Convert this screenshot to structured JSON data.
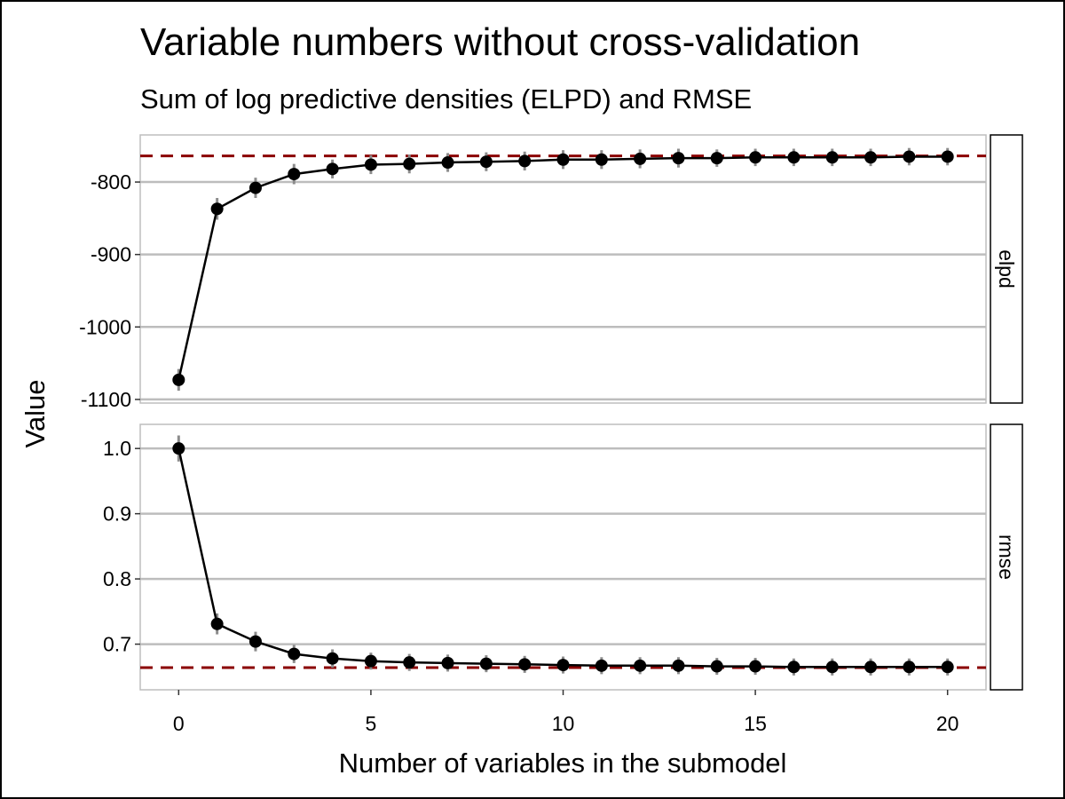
{
  "chart_data": {
    "type": "line",
    "title": "Variable numbers without cross-validation",
    "subtitle": "Sum of log predictive densities (ELPD) and RMSE",
    "xlabel": "Number of variables in the submodel",
    "ylabel": "Value",
    "x": [
      0,
      1,
      2,
      3,
      4,
      5,
      6,
      7,
      8,
      9,
      10,
      11,
      12,
      13,
      14,
      15,
      16,
      17,
      18,
      19,
      20
    ],
    "xlim": [
      -1,
      21
    ],
    "xticks": [
      0,
      5,
      10,
      15,
      20
    ],
    "grid": "horizontal major",
    "colors": {
      "line": "#000000",
      "point": "#000000",
      "errorbar": "#8c8c8c",
      "reference": "#8b0000",
      "grid": "#bdbdbd",
      "panel_border": "#bdbdbd"
    },
    "panels": [
      {
        "strip": "elpd",
        "ylim": [
          -1105,
          -735
        ],
        "yticks": [
          -800,
          -900,
          -1000,
          -1100
        ],
        "ytick_labels": [
          "-800",
          "-900",
          "-1000",
          "-1100"
        ],
        "reference": -764,
        "values": [
          -1073,
          -837,
          -808,
          -789,
          -782,
          -776,
          -775,
          -773,
          -772,
          -771,
          -769,
          -769,
          -768,
          -767,
          -767,
          -766,
          -766,
          -766,
          -766,
          -765,
          -765
        ],
        "error": [
          15,
          15,
          14,
          14,
          13,
          13,
          13,
          13,
          13,
          13,
          13,
          13,
          13,
          13,
          12,
          12,
          12,
          12,
          12,
          12,
          12
        ]
      },
      {
        "strip": "rmse",
        "ylim": [
          0.63,
          1.037
        ],
        "yticks": [
          1.0,
          0.9,
          0.8,
          0.7
        ],
        "ytick_labels": [
          "1.0",
          "0.9",
          "0.8",
          "0.7"
        ],
        "reference": 0.664,
        "values": [
          1.0,
          0.731,
          0.704,
          0.685,
          0.678,
          0.674,
          0.672,
          0.671,
          0.67,
          0.669,
          0.668,
          0.667,
          0.667,
          0.667,
          0.666,
          0.666,
          0.665,
          0.665,
          0.665,
          0.665,
          0.665
        ],
        "error": [
          0.02,
          0.016,
          0.015,
          0.014,
          0.014,
          0.013,
          0.013,
          0.013,
          0.013,
          0.013,
          0.013,
          0.013,
          0.013,
          0.013,
          0.013,
          0.013,
          0.013,
          0.013,
          0.013,
          0.013,
          0.013
        ]
      }
    ]
  }
}
